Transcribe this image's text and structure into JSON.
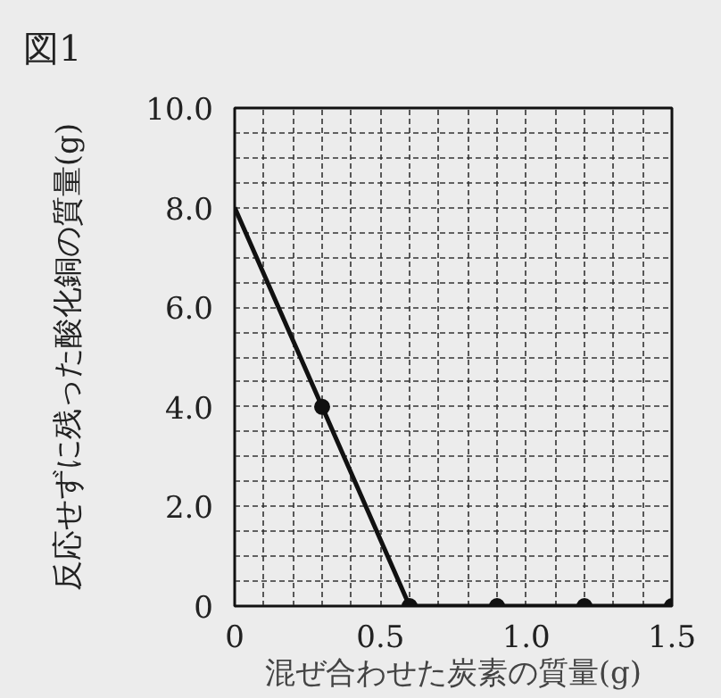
{
  "chart_data": {
    "type": "line",
    "title": "図1",
    "xlabel": "混ぜ合わせた炭素の質量(g)",
    "ylabel": "反応せずに残った酸化銅の質量(g)",
    "series": [
      {
        "type": "line",
        "color": "#111111",
        "x": [
          0,
          0.3,
          0.6,
          0.9,
          1.2,
          1.5
        ],
        "values": [
          8.0,
          4.0,
          0,
          0,
          0,
          0
        ],
        "marker": "none"
      },
      {
        "type": "scatter",
        "color": "#111111",
        "x": [
          0.3,
          0.6,
          0.9,
          1.2,
          1.5
        ],
        "values": [
          4.0,
          0,
          0,
          0,
          0
        ],
        "marker": "circle"
      }
    ],
    "xlim": [
      0,
      1.5
    ],
    "ylim": [
      0,
      10.0
    ],
    "xticks": [
      0,
      {
        "value": 0.1,
        "label": null
      },
      {
        "value": 0.2,
        "label": null
      },
      {
        "value": 0.3,
        "label": null
      },
      {
        "value": 0.4,
        "label": null
      },
      0.5,
      {
        "value": 0.6,
        "label": null
      },
      {
        "value": 0.7,
        "label": null
      },
      {
        "value": 0.8,
        "label": null
      },
      {
        "value": 0.9,
        "label": null
      },
      {
        "value": 1.0,
        "label": "1.0"
      },
      {
        "value": 1.1,
        "label": null
      },
      {
        "value": 1.2,
        "label": null
      },
      {
        "value": 1.3,
        "label": null
      },
      {
        "value": 1.4,
        "label": null
      },
      1.5
    ],
    "yticks": [
      0,
      {
        "value": 0.5,
        "label": null
      },
      {
        "value": 1.0,
        "label": null
      },
      {
        "value": 1.5,
        "label": null
      },
      {
        "value": 2.0,
        "label": "2.0"
      },
      {
        "value": 2.5,
        "label": null
      },
      {
        "value": 3.0,
        "label": null
      },
      {
        "value": 3.5,
        "label": null
      },
      {
        "value": 4.0,
        "label": "4.0"
      },
      {
        "value": 4.5,
        "label": null
      },
      {
        "value": 5.0,
        "label": null
      },
      {
        "value": 5.5,
        "label": null
      },
      {
        "value": 6.0,
        "label": "6.0"
      },
      {
        "value": 6.5,
        "label": null
      },
      {
        "value": 7.0,
        "label": null
      },
      {
        "value": 7.5,
        "label": null
      },
      {
        "value": 8.0,
        "label": "8.0"
      },
      {
        "value": 8.5,
        "label": null
      },
      {
        "value": 9.0,
        "label": null
      },
      {
        "value": 9.5,
        "label": null
      },
      {
        "value": 10.0,
        "label": "10.0"
      }
    ],
    "grid": true,
    "line_style": "solid"
  }
}
